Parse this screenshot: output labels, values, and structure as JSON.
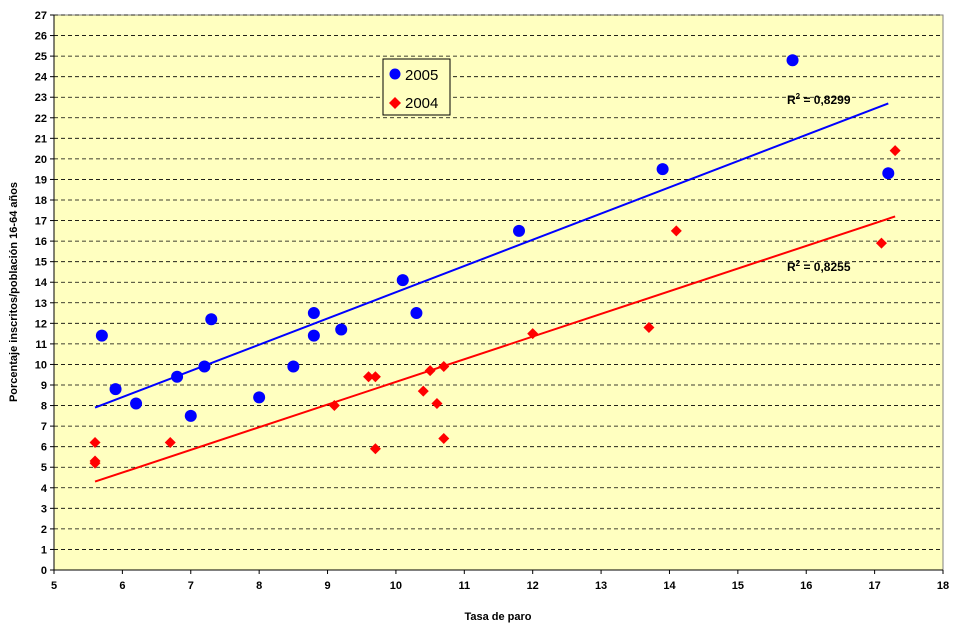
{
  "chart_data": {
    "type": "scatter",
    "title": "",
    "xlabel": "Tasa de paro",
    "ylabel": "Porcentaje inscritos/población 16-64 años",
    "xlim": [
      5,
      18
    ],
    "ylim": [
      0,
      27
    ],
    "x_ticks": [
      5,
      6,
      7,
      8,
      9,
      10,
      11,
      12,
      13,
      14,
      15,
      16,
      17,
      18
    ],
    "y_ticks": [
      0,
      1,
      2,
      3,
      4,
      5,
      6,
      7,
      8,
      9,
      10,
      11,
      12,
      13,
      14,
      15,
      16,
      17,
      18,
      19,
      20,
      21,
      22,
      23,
      24,
      25,
      26,
      27
    ],
    "grid": "horizontal dashed",
    "background": "#FFFFC0",
    "legend_placement": "top-center",
    "series": [
      {
        "name": "2005",
        "marker": "circle",
        "color": "#0000FF",
        "points": [
          [
            5.7,
            11.4
          ],
          [
            5.9,
            8.8
          ],
          [
            6.2,
            8.1
          ],
          [
            6.8,
            9.4
          ],
          [
            7.0,
            7.5
          ],
          [
            7.2,
            9.9
          ],
          [
            7.3,
            12.2
          ],
          [
            8.0,
            8.4
          ],
          [
            8.5,
            9.9
          ],
          [
            8.8,
            12.5
          ],
          [
            8.8,
            11.4
          ],
          [
            9.2,
            11.7
          ],
          [
            10.1,
            14.1
          ],
          [
            10.3,
            12.5
          ],
          [
            11.8,
            16.5
          ],
          [
            13.9,
            19.5
          ],
          [
            15.8,
            24.8
          ],
          [
            17.2,
            19.3
          ]
        ],
        "trendline": {
          "x": [
            5.6,
            17.2
          ],
          "y": [
            7.9,
            22.7
          ],
          "color": "#0000FF",
          "r2_base": "R",
          "r2_exp": "2",
          "r2_value": " = 0,8299"
        }
      },
      {
        "name": "2004",
        "marker": "diamond",
        "color": "#FF0000",
        "points": [
          [
            5.6,
            6.2
          ],
          [
            5.6,
            5.3
          ],
          [
            5.6,
            5.2
          ],
          [
            6.7,
            6.2
          ],
          [
            9.1,
            8.0
          ],
          [
            9.6,
            9.4
          ],
          [
            9.7,
            9.4
          ],
          [
            9.7,
            5.9
          ],
          [
            10.4,
            8.7
          ],
          [
            10.5,
            9.7
          ],
          [
            10.6,
            8.1
          ],
          [
            10.7,
            9.9
          ],
          [
            10.7,
            6.4
          ],
          [
            12.0,
            11.5
          ],
          [
            13.7,
            11.8
          ],
          [
            14.1,
            16.5
          ],
          [
            17.1,
            15.9
          ],
          [
            17.3,
            20.4
          ]
        ],
        "trendline": {
          "x": [
            5.6,
            17.3
          ],
          "y": [
            4.3,
            17.2
          ],
          "color": "#FF0000",
          "r2_base": "R",
          "r2_exp": "2",
          "r2_value": " = 0,8255"
        }
      }
    ]
  }
}
